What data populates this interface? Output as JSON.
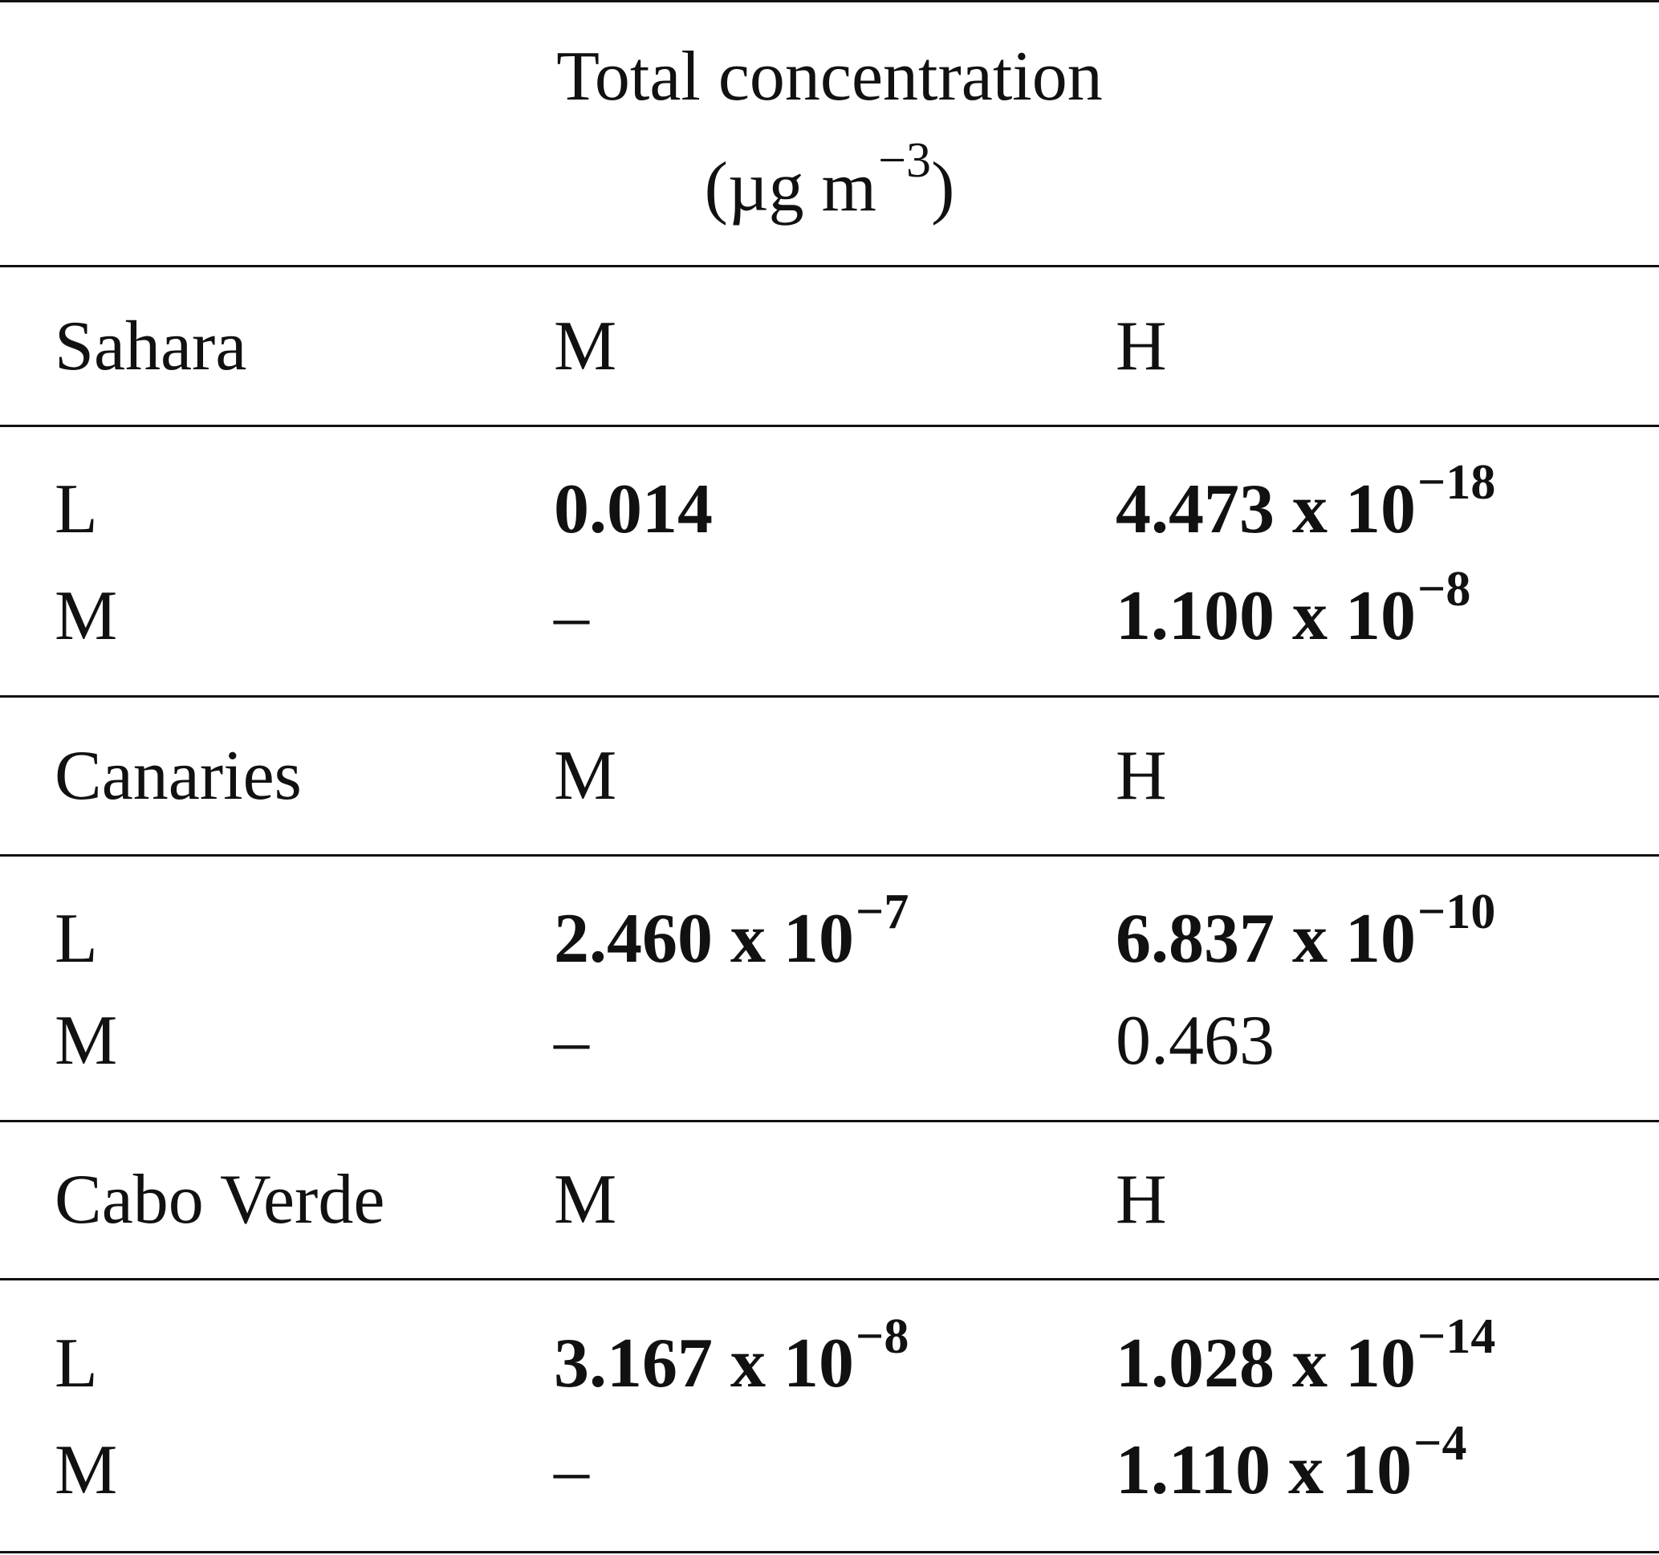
{
  "header": {
    "line1": "Total concentration",
    "unit_open": "(µg m",
    "unit_exp": "−3",
    "unit_close": ")"
  },
  "sections": [
    {
      "region": "Sahara",
      "col_m": "M",
      "col_h": "H",
      "rows": [
        {
          "label": "L",
          "m": {
            "mantissa": "0.014",
            "exp": "",
            "bold": true
          },
          "h": {
            "mantissa": "4.473 x 10",
            "exp": "−18",
            "bold": true
          }
        },
        {
          "label": "M",
          "m": {
            "mantissa": "–",
            "exp": "",
            "bold": false
          },
          "h": {
            "mantissa": "1.100 x 10",
            "exp": "−8",
            "bold": true
          }
        }
      ]
    },
    {
      "region": "Canaries",
      "col_m": "M",
      "col_h": "H",
      "rows": [
        {
          "label": "L",
          "m": {
            "mantissa": "2.460 x 10",
            "exp": "−7",
            "bold": true
          },
          "h": {
            "mantissa": "6.837 x 10",
            "exp": "−10",
            "bold": true
          }
        },
        {
          "label": "M",
          "m": {
            "mantissa": "–",
            "exp": "",
            "bold": false
          },
          "h": {
            "mantissa": "0.463",
            "exp": "",
            "bold": false
          }
        }
      ]
    },
    {
      "region": "Cabo Verde",
      "col_m": "M",
      "col_h": "H",
      "rows": [
        {
          "label": "L",
          "m": {
            "mantissa": "3.167 x 10",
            "exp": "−8",
            "bold": true
          },
          "h": {
            "mantissa": "1.028 x 10",
            "exp": "−14",
            "bold": true
          }
        },
        {
          "label": "M",
          "m": {
            "mantissa": "–",
            "exp": "",
            "bold": false
          },
          "h": {
            "mantissa": "1.110 x 10",
            "exp": "−4",
            "bold": true
          }
        }
      ]
    }
  ]
}
